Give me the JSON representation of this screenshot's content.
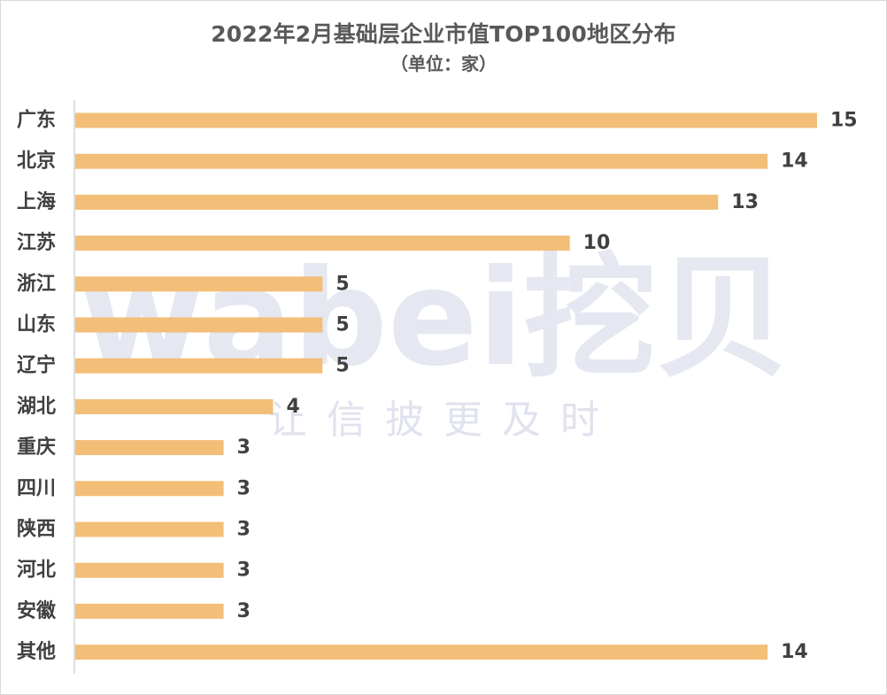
{
  "chart_data": {
    "type": "bar",
    "orientation": "horizontal",
    "title": "2022年2月基础层企业市值TOP100地区分布",
    "subtitle": "（单位：家）",
    "categories": [
      "广东",
      "北京",
      "上海",
      "江苏",
      "浙江",
      "山东",
      "辽宁",
      "湖北",
      "重庆",
      "四川",
      "陕西",
      "河北",
      "安徽",
      "其他"
    ],
    "values": [
      15,
      14,
      13,
      10,
      5,
      5,
      5,
      4,
      3,
      3,
      3,
      3,
      3,
      14
    ],
    "xlim": [
      0,
      15
    ],
    "grid": false,
    "legend": "none",
    "data_labels": true
  },
  "watermark": {
    "main": "wabei挖贝",
    "sub": "让信披更及时"
  },
  "colors": {
    "bar": "#F2BE78",
    "text": "#404040",
    "title": "#595959",
    "axis": "#bfbfbf",
    "watermark": "#cfd3e6"
  }
}
